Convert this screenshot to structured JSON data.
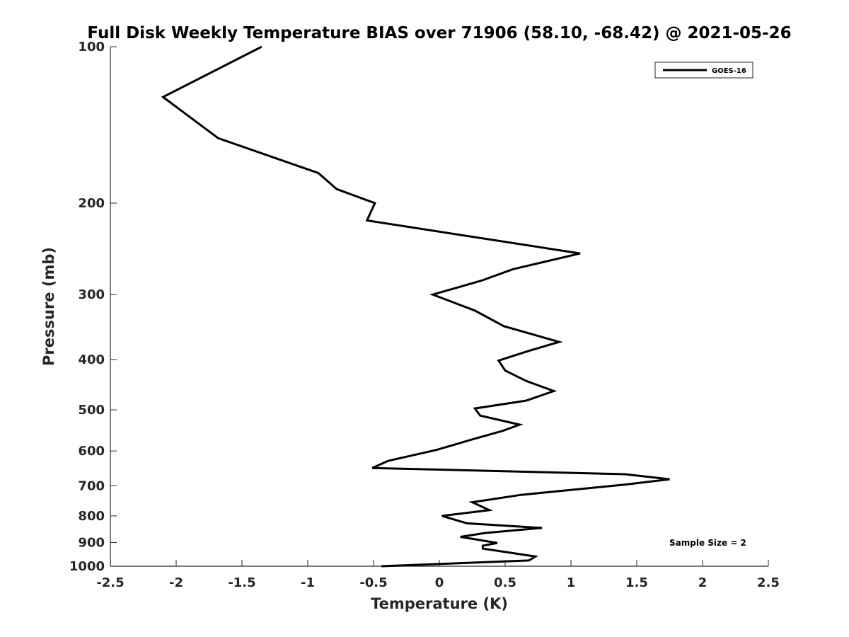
{
  "chart_data": {
    "type": "line",
    "title": "Full Disk Weekly Temperature BIAS over 71906 (58.10, -68.42) @ 2021-05-26",
    "xlabel": "Temperature (K)",
    "ylabel": "Pressure (mb)",
    "xlim": [
      -2.5,
      2.5
    ],
    "ylim": [
      100,
      1000
    ],
    "yscale": "log",
    "y_reversed": true,
    "grid": false,
    "x_ticks": [
      -2.5,
      -2,
      -1.5,
      -1,
      -0.5,
      0,
      0.5,
      1,
      1.5,
      2,
      2.5
    ],
    "x_tick_labels": [
      "-2.5",
      "-2",
      "-1.5",
      "-1",
      "-0.5",
      "0",
      "0.5",
      "1",
      "1.5",
      "2",
      "2.5"
    ],
    "y_ticks": [
      100,
      200,
      300,
      400,
      500,
      600,
      700,
      800,
      900,
      1000
    ],
    "y_tick_labels": [
      "100",
      "200",
      "300",
      "400",
      "500",
      "600",
      "700",
      "800",
      "900",
      "1000"
    ],
    "legend": {
      "position": "top-right",
      "entries": [
        "GOES-16"
      ]
    },
    "annotation": "Sample Size = 2",
    "series": [
      {
        "name": "GOES-16",
        "color": "#000000",
        "points": [
          {
            "t": -1.35,
            "p": 100
          },
          {
            "t": -2.1,
            "p": 125
          },
          {
            "t": -1.68,
            "p": 150
          },
          {
            "t": -0.92,
            "p": 175
          },
          {
            "t": -0.78,
            "p": 188
          },
          {
            "t": -0.49,
            "p": 200
          },
          {
            "t": -0.55,
            "p": 216
          },
          {
            "t": 1.07,
            "p": 250
          },
          {
            "t": 0.56,
            "p": 268
          },
          {
            "t": 0.32,
            "p": 282
          },
          {
            "t": -0.05,
            "p": 300
          },
          {
            "t": 0.27,
            "p": 322
          },
          {
            "t": 0.49,
            "p": 345
          },
          {
            "t": 0.91,
            "p": 370
          },
          {
            "t": 0.68,
            "p": 385
          },
          {
            "t": 0.45,
            "p": 402
          },
          {
            "t": 0.5,
            "p": 420
          },
          {
            "t": 0.66,
            "p": 440
          },
          {
            "t": 0.87,
            "p": 460
          },
          {
            "t": 0.66,
            "p": 480
          },
          {
            "t": 0.27,
            "p": 497
          },
          {
            "t": 0.31,
            "p": 513
          },
          {
            "t": 0.61,
            "p": 534
          },
          {
            "t": 0.48,
            "p": 549
          },
          {
            "t": 0.25,
            "p": 570
          },
          {
            "t": -0.02,
            "p": 597
          },
          {
            "t": -0.39,
            "p": 627
          },
          {
            "t": -0.51,
            "p": 647
          },
          {
            "t": 1.41,
            "p": 665
          },
          {
            "t": 1.75,
            "p": 680
          },
          {
            "t": 1.4,
            "p": 697
          },
          {
            "t": 0.62,
            "p": 729
          },
          {
            "t": 0.25,
            "p": 753
          },
          {
            "t": 0.38,
            "p": 780
          },
          {
            "t": 0.02,
            "p": 800
          },
          {
            "t": 0.21,
            "p": 827
          },
          {
            "t": 0.78,
            "p": 844
          },
          {
            "t": 0.35,
            "p": 863
          },
          {
            "t": 0.16,
            "p": 878
          },
          {
            "t": 0.44,
            "p": 902
          },
          {
            "t": 0.33,
            "p": 913
          },
          {
            "t": 0.33,
            "p": 925
          },
          {
            "t": 0.73,
            "p": 958
          },
          {
            "t": 0.68,
            "p": 975
          },
          {
            "t": -0.44,
            "p": 1000
          }
        ]
      }
    ]
  }
}
